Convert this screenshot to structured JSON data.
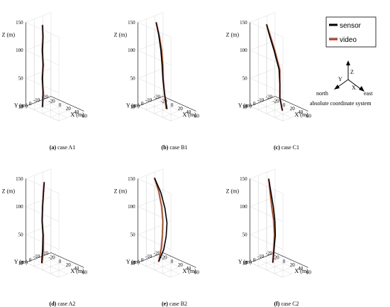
{
  "legend": {
    "sensor": "sensor",
    "video": "video"
  },
  "colors": {
    "sensor": "#000000",
    "video": "#8b4513",
    "video_glow": "#f2a8b4"
  },
  "compass": {
    "up": "Z",
    "y": "Y",
    "x": "X",
    "north": "north",
    "east": "east",
    "caption": "absolute coordinate system"
  },
  "axes": {
    "zlabel": "Z (m)",
    "ylabel": "Y (m)",
    "xlabel": "X (m)",
    "zticks": [
      "0",
      "50",
      "100",
      "150"
    ],
    "yticks": [
      "10",
      "0",
      "-10",
      "-20"
    ],
    "xticks": [
      "-20",
      "0",
      "20",
      "40",
      "60"
    ]
  },
  "chart_data": [
    {
      "type": "line3d",
      "caption_letter": "(a)",
      "caption_text": " case A1",
      "zlim": [
        0,
        150
      ],
      "xlim": [
        -20,
        60
      ],
      "ylim": [
        -20,
        10
      ],
      "series": [
        {
          "name": "sensor",
          "x": [
            0,
            1,
            0,
            1,
            0,
            1,
            0
          ],
          "y": [
            0,
            0,
            0,
            0,
            0,
            0,
            0
          ],
          "z": [
            0,
            25,
            50,
            75,
            100,
            125,
            145
          ]
        },
        {
          "name": "video",
          "x": [
            0,
            2,
            -1,
            2,
            -1,
            1,
            0
          ],
          "y": [
            0,
            0,
            0,
            0,
            0,
            0,
            0
          ],
          "z": [
            0,
            25,
            50,
            75,
            100,
            125,
            145
          ]
        }
      ]
    },
    {
      "type": "line3d",
      "caption_letter": "(b)",
      "caption_text": " case B1",
      "zlim": [
        0,
        150
      ],
      "xlim": [
        -20,
        60
      ],
      "ylim": [
        -20,
        10
      ],
      "series": [
        {
          "name": "sensor",
          "x": [
            20,
            14,
            10,
            8,
            5,
            0,
            -6
          ],
          "y": [
            -5,
            -5,
            -5,
            -5,
            -5,
            -5,
            -5
          ],
          "z": [
            0,
            25,
            50,
            75,
            100,
            125,
            145
          ]
        },
        {
          "name": "video",
          "x": [
            18,
            14,
            11,
            10,
            7,
            1,
            -6
          ],
          "y": [
            -5,
            -5,
            -5,
            -5,
            -5,
            -5,
            -5
          ],
          "z": [
            0,
            25,
            50,
            75,
            100,
            125,
            145
          ]
        }
      ]
    },
    {
      "type": "line3d",
      "caption_letter": "(c)",
      "caption_text": " case C1",
      "zlim": [
        0,
        150
      ],
      "xlim": [
        -20,
        60
      ],
      "ylim": [
        -20,
        10
      ],
      "series": [
        {
          "name": "sensor",
          "x": [
            28,
            22,
            22,
            20,
            8,
            -4,
            -10
          ],
          "y": [
            -5,
            -5,
            -5,
            -5,
            -5,
            -5,
            -5
          ],
          "z": [
            0,
            20,
            45,
            70,
            100,
            125,
            140
          ]
        },
        {
          "name": "video",
          "x": [
            28,
            22,
            22,
            22,
            10,
            -2,
            -10
          ],
          "y": [
            -5,
            -5,
            -5,
            -5,
            -5,
            -5,
            -5
          ],
          "z": [
            0,
            20,
            45,
            70,
            100,
            125,
            140
          ]
        }
      ]
    },
    {
      "type": "line3d",
      "caption_letter": "(d)",
      "caption_text": " case A2",
      "zlim": [
        0,
        150
      ],
      "xlim": [
        -20,
        60
      ],
      "ylim": [
        -20,
        10
      ],
      "series": [
        {
          "name": "sensor",
          "x": [
            -2,
            0,
            1,
            -1,
            0,
            2,
            4
          ],
          "y": [
            0,
            0,
            0,
            0,
            0,
            0,
            0
          ],
          "z": [
            0,
            25,
            50,
            75,
            100,
            125,
            145
          ]
        },
        {
          "name": "video",
          "x": [
            -1,
            2,
            2,
            -1,
            0,
            2,
            4
          ],
          "y": [
            0,
            0,
            0,
            0,
            0,
            0,
            0
          ],
          "z": [
            0,
            25,
            50,
            75,
            100,
            125,
            145
          ]
        }
      ]
    },
    {
      "type": "line3d",
      "caption_letter": "(e)",
      "caption_text": " case B2",
      "zlim": [
        0,
        150
      ],
      "xlim": [
        -20,
        60
      ],
      "ylim": [
        -20,
        10
      ],
      "series": [
        {
          "name": "sensor",
          "x": [
            0,
            12,
            18,
            20,
            15,
            5,
            -10
          ],
          "y": [
            -5,
            -5,
            -5,
            -5,
            -5,
            -5,
            -5
          ],
          "z": [
            0,
            25,
            50,
            75,
            100,
            125,
            145
          ]
        },
        {
          "name": "video",
          "x": [
            0,
            6,
            9,
            10,
            7,
            0,
            -10
          ],
          "y": [
            -5,
            -5,
            -5,
            -5,
            -5,
            -5,
            -5
          ],
          "z": [
            0,
            25,
            50,
            75,
            100,
            125,
            145
          ]
        }
      ]
    },
    {
      "type": "line3d",
      "caption_letter": "(f)",
      "caption_text": " case C2",
      "zlim": [
        0,
        150
      ],
      "xlim": [
        -20,
        60
      ],
      "ylim": [
        -20,
        10
      ],
      "series": [
        {
          "name": "sensor",
          "x": [
            5,
            8,
            11,
            10,
            6,
            0,
            -5
          ],
          "y": [
            -5,
            -5,
            -5,
            -5,
            -5,
            -5,
            -5
          ],
          "z": [
            0,
            25,
            50,
            75,
            100,
            125,
            145
          ]
        },
        {
          "name": "video",
          "x": [
            5,
            7,
            9,
            7,
            2,
            -2,
            -5
          ],
          "y": [
            -5,
            -5,
            -5,
            -5,
            -5,
            -5,
            -5
          ],
          "z": [
            0,
            25,
            50,
            75,
            100,
            125,
            145
          ]
        }
      ]
    }
  ]
}
